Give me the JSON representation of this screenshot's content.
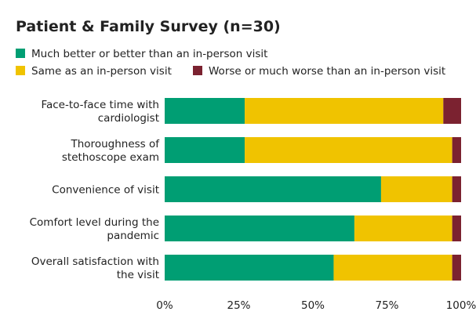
{
  "chart_data": {
    "type": "bar",
    "orientation": "horizontal",
    "stacked": true,
    "title": "Patient & Family Survey (n=30)",
    "categories": [
      [
        "Face-to-face time with",
        "cardiologist"
      ],
      [
        "Thoroughness of",
        "stethoscope exam"
      ],
      [
        "Convenience of visit"
      ],
      [
        "Comfort level during the",
        "pandemic"
      ],
      [
        "Overall satisfaction with",
        "the visit"
      ]
    ],
    "series": [
      {
        "name": "Much better or better than an in-person visit",
        "color": "#009e73",
        "values": [
          27,
          27,
          73,
          64,
          57
        ]
      },
      {
        "name": "Same as an in-person visit",
        "color": "#f0c300",
        "values": [
          67,
          70,
          24,
          33,
          40
        ]
      },
      {
        "name": "Worse or much worse than an in-person visit",
        "color": "#7b2230",
        "values": [
          6,
          3,
          3,
          3,
          3
        ]
      }
    ],
    "xlim": [
      0,
      100
    ],
    "xticks": [
      "0%",
      "25%",
      "50%",
      "75%",
      "100%"
    ],
    "xtick_values": [
      0,
      25,
      50,
      75,
      100
    ],
    "grid": false,
    "legend_position": "top"
  }
}
